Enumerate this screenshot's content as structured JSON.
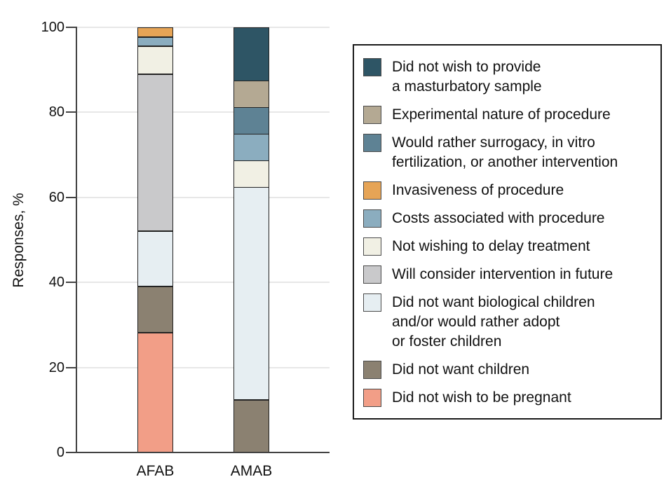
{
  "chart_data": {
    "type": "bar",
    "subtype": "stacked-vertical",
    "title": "",
    "ylabel": "Responses, %",
    "xlabel": "",
    "ylim": [
      0,
      100
    ],
    "yticks": [
      0,
      20,
      40,
      60,
      80,
      100
    ],
    "grid": "horizontal",
    "legend_position": "right",
    "categories": [
      "AFAB",
      "AMAB"
    ],
    "series": [
      {
        "name": "Did not wish to provide a masturbatory sample",
        "label_lines": [
          "Did not wish to provide",
          "a masturbatory sample"
        ],
        "color": "#2e5565",
        "values": [
          0,
          12.5
        ]
      },
      {
        "name": "Experimental nature of procedure",
        "label_lines": [
          "Experimental nature of procedure"
        ],
        "color": "#b4a993",
        "values": [
          0,
          6.25
        ]
      },
      {
        "name": "Would rather surrogacy, in vitro fertilization, or another intervention",
        "label_lines": [
          "Would rather surrogacy, in vitro",
          "fertilization, or another intervention"
        ],
        "color": "#5e8294",
        "values": [
          0,
          6.25
        ]
      },
      {
        "name": "Invasiveness of procedure",
        "label_lines": [
          "Invasiveness of procedure"
        ],
        "color": "#e6a456",
        "values": [
          2.2,
          0
        ]
      },
      {
        "name": "Costs associated with procedure",
        "label_lines": [
          "Costs associated with procedure"
        ],
        "color": "#8badbf",
        "values": [
          2.2,
          6.25
        ]
      },
      {
        "name": "Not wishing to delay treatment",
        "label_lines": [
          "Not wishing to delay treatment"
        ],
        "color": "#f1f0e4",
        "values": [
          6.5,
          6.25
        ]
      },
      {
        "name": "Will consider intervention in future",
        "label_lines": [
          "Will consider intervention in future"
        ],
        "color": "#c9c9cb",
        "values": [
          36.9,
          0
        ]
      },
      {
        "name": "Did not want biological children and/or would rather adopt or foster children",
        "label_lines": [
          "Did not want biological children",
          "and/or would rather adopt",
          "or foster children"
        ],
        "color": "#e6eef2",
        "values": [
          13.0,
          50.0
        ]
      },
      {
        "name": "Did not want children",
        "label_lines": [
          "Did not want children"
        ],
        "color": "#8b8171",
        "values": [
          10.9,
          12.5
        ]
      },
      {
        "name": "Did not wish to be pregnant",
        "label_lines": [
          "Did not wish to be pregnant"
        ],
        "color": "#f29e87",
        "values": [
          28.3,
          0
        ]
      }
    ]
  },
  "colors": {
    "axis": "#424242",
    "grid": "#e7e7e7",
    "segment_border": "#232323",
    "legend_border": "#1a1a1a",
    "text": "#111111"
  }
}
